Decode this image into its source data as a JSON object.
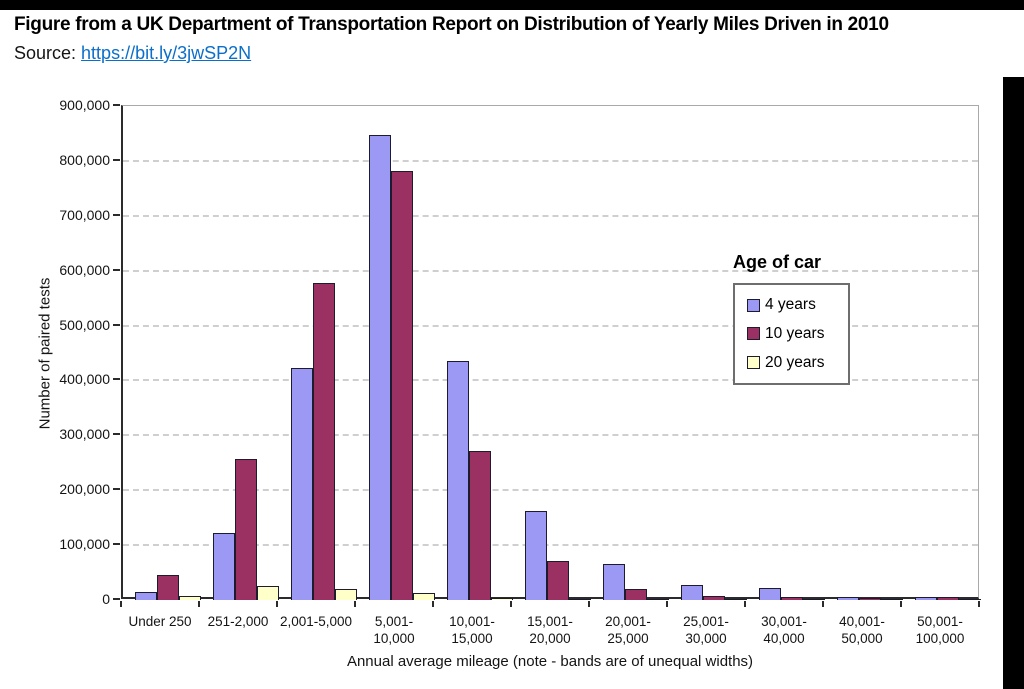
{
  "page": {
    "title": "Figure from a UK Department of Transportation Report on Distribution of Yearly Miles Driven in 2010",
    "source_label": "Source: ",
    "source_link_text": "https://bit.ly/3jwSP2N",
    "link_color": "#0B6FC9"
  },
  "chart_data": {
    "type": "bar",
    "title": "",
    "xlabel": "Annual average mileage (note - bands are of unequal widths)",
    "ylabel": "Number of paired tests",
    "ylim": [
      0,
      900000
    ],
    "ytick_step": 100000,
    "ytick_labels": [
      "0",
      "100,000",
      "200,000",
      "300,000",
      "400,000",
      "500,000",
      "600,000",
      "700,000",
      "800,000",
      "900,000"
    ],
    "grid": "horizontal-dashed",
    "legend_title": "Age of car",
    "legend_position": "inside-right",
    "categories": [
      [
        "Under 250"
      ],
      [
        "251-2,000"
      ],
      [
        "2,001-5,000"
      ],
      [
        "5,001-",
        "10,000"
      ],
      [
        "10,001-",
        "15,000"
      ],
      [
        "15,001-",
        "20,000"
      ],
      [
        "20,001-",
        "25,000"
      ],
      [
        "25,001-",
        "30,000"
      ],
      [
        "30,001-",
        "40,000"
      ],
      [
        "40,001-",
        "50,000"
      ],
      [
        "50,001-",
        "100,000"
      ]
    ],
    "series": [
      {
        "name": "4 years",
        "color": "#9B99F4",
        "values": [
          14000,
          122000,
          423000,
          848000,
          436000,
          163000,
          65000,
          27000,
          22000,
          6000,
          5000
        ]
      },
      {
        "name": "10 years",
        "color": "#9B3163",
        "values": [
          46000,
          257000,
          578000,
          782000,
          271000,
          71000,
          20000,
          7000,
          5000,
          3000,
          6000
        ]
      },
      {
        "name": "20 years",
        "color": "#FFFFC9",
        "values": [
          7000,
          26000,
          20000,
          13000,
          4000,
          2000,
          1500,
          1000,
          1000,
          500,
          500
        ]
      }
    ]
  }
}
